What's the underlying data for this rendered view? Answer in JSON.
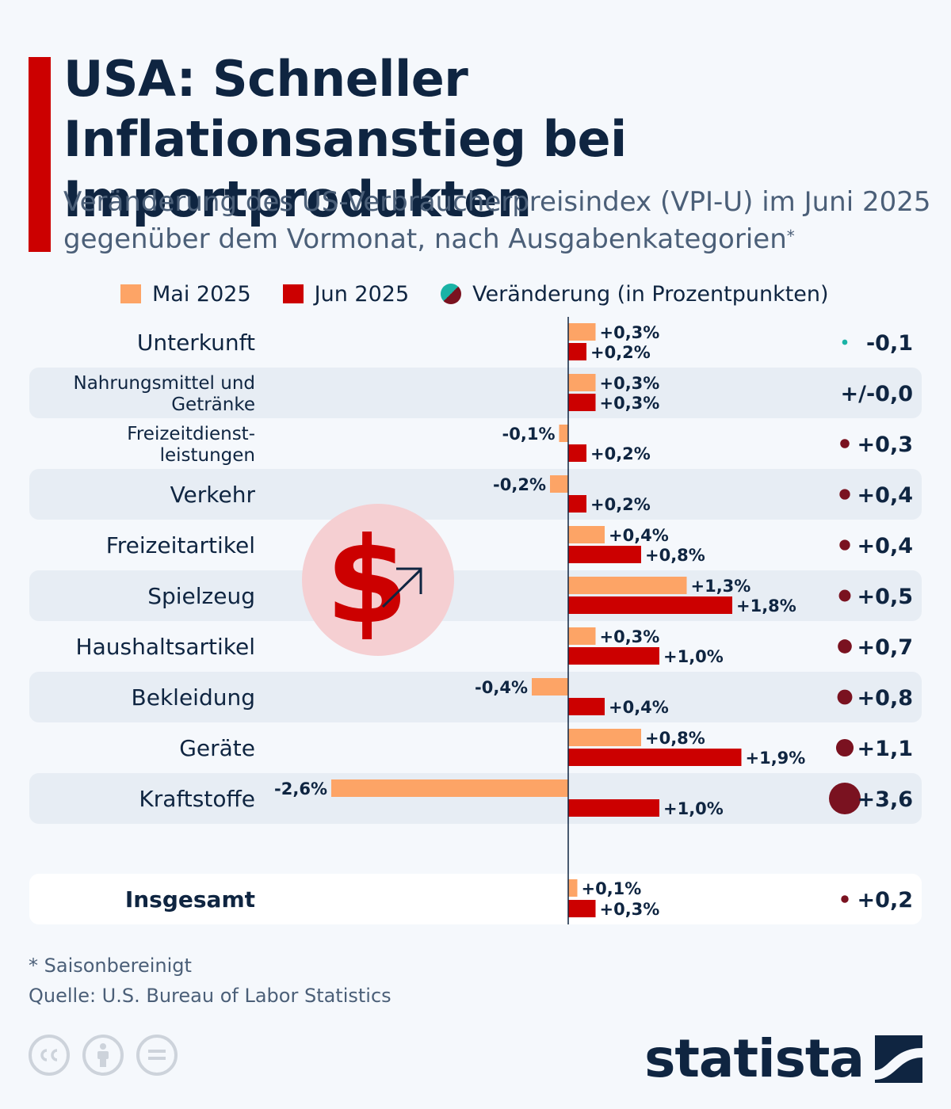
{
  "title": "USA: Schneller Inflationsanstieg bei Importprodukten",
  "subtitle": "Veränderung des US-Verbraucherpreisindex (VPI-U) im Juni 2025 gegenüber dem Vormonat, nach Ausgabenkategorien",
  "subtitle_mark": "*",
  "legend": {
    "mai": "Mai 2025",
    "jun": "Jun 2025",
    "change": "Veränderung (in Prozentpunkten)"
  },
  "colors": {
    "mai": "#fda466",
    "jun": "#cc0000",
    "change_positive": "#7a1220",
    "change_negative": "#1ab3a6",
    "title": "#0f2541",
    "accent": "#cc0000"
  },
  "chart_data": {
    "type": "bar",
    "orientation": "horizontal",
    "categories": [
      "Unterkunft",
      "Nahrungsmittel und Getränke",
      "Freizeitdienst-leistungen",
      "Verkehr",
      "Freizeitartikel",
      "Spielzeug",
      "Haushaltsartikel",
      "Bekleidung",
      "Geräte",
      "Kraftstoffe"
    ],
    "category_lines": [
      [
        "Unterkunft"
      ],
      [
        "Nahrungsmittel und",
        "Getränke"
      ],
      [
        "Freizeitdienst-",
        "leistungen"
      ],
      [
        "Verkehr"
      ],
      [
        "Freizeitartikel"
      ],
      [
        "Spielzeug"
      ],
      [
        "Haushaltsartikel"
      ],
      [
        "Bekleidung"
      ],
      [
        "Geräte"
      ],
      [
        "Kraftstoffe"
      ]
    ],
    "series": [
      {
        "name": "Mai 2025",
        "values": [
          0.3,
          0.3,
          -0.1,
          -0.2,
          0.4,
          1.3,
          0.3,
          -0.4,
          0.8,
          -2.6
        ],
        "labels": [
          "+0,3%",
          "+0,3%",
          "-0,1%",
          "-0,2%",
          "+0,4%",
          "+1,3%",
          "+0,3%",
          "-0,4%",
          "+0,8%",
          "-2,6%"
        ]
      },
      {
        "name": "Jun 2025",
        "values": [
          0.2,
          0.3,
          0.2,
          0.2,
          0.8,
          1.8,
          1.0,
          0.4,
          1.9,
          1.0
        ],
        "labels": [
          "+0,2%",
          "+0,3%",
          "+0,2%",
          "+0,2%",
          "+0,8%",
          "+1,8%",
          "+1,0%",
          "+0,4%",
          "+1,9%",
          "+1,0%"
        ]
      }
    ],
    "change": {
      "name": "Veränderung (in Prozentpunkten)",
      "values": [
        -0.1,
        0.0,
        0.3,
        0.4,
        0.4,
        0.5,
        0.7,
        0.8,
        1.1,
        3.6
      ],
      "labels": [
        "-0,1",
        "+/-0,0",
        "+0,3",
        "+0,4",
        "+0,4",
        "+0,5",
        "+0,7",
        "+0,8",
        "+1,1",
        "+3,6"
      ]
    },
    "total": {
      "label": "Insgesamt",
      "mai": 0.1,
      "mai_label": "+0,1%",
      "jun": 0.3,
      "jun_label": "+0,3%",
      "change": 0.2,
      "change_label": "+0,2"
    },
    "xlim": [
      -2.6,
      1.9
    ],
    "grid": false
  },
  "icon": "dollar-arrow-icon",
  "footnote": "* Saisonbereinigt",
  "source": "Quelle: U.S. Bureau of Labor Statistics",
  "brand": "statista"
}
